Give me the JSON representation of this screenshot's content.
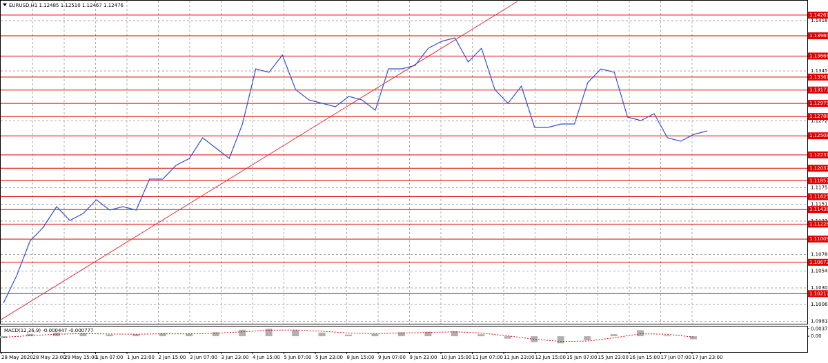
{
  "chart_data": [
    {
      "type": "line",
      "title": "EURUSD,H1 1.12485 1.12510 1.12467 1.12476",
      "color": "#2f4fd0",
      "values": [
        1.1008,
        1.1048,
        1.1098,
        1.1118,
        1.1148,
        1.1128,
        1.1138,
        1.1158,
        1.1143,
        1.1148,
        1.1143,
        1.1188,
        1.1188,
        1.1208,
        1.1218,
        1.1248,
        1.1233,
        1.1218,
        1.1268,
        1.1348,
        1.1343,
        1.1368,
        1.1318,
        1.1303,
        1.1298,
        1.1293,
        1.1308,
        1.1303,
        1.1288,
        1.1348,
        1.1348,
        1.1353,
        1.1378,
        1.1388,
        1.1393,
        1.1358,
        1.1378,
        1.1318,
        1.1298,
        1.1323,
        1.1263,
        1.1263,
        1.1268,
        1.1268,
        1.1328,
        1.1348,
        1.1343,
        1.1278,
        1.1273,
        1.1283,
        1.1248,
        1.1243,
        1.1253,
        1.1258
      ],
      "time_labels": [
        "28 May 2020",
        "28 May 23:00",
        "29 May 15:00",
        "1 Jun 07:00",
        "1 Jun 23:00",
        "2 Jun 15:00",
        "3 Jun 07:00",
        "3 Jun 23:00",
        "4 Jun 15:00",
        "5 Jun 07:00",
        "5 Jun 23:00",
        "8 Jun 15:00",
        "9 Jun 07:00",
        "9 Jun 23:00",
        "10 Jun 15:00",
        "11 Jun 07:00",
        "11 Jun 23:00",
        "12 Jun 15:00",
        "15 Jun 07:00",
        "15 Jun 23:00",
        "16 Jun 15:00",
        "17 Jun 07:00",
        "17 Jun 23:00"
      ],
      "ylim": [
        1.0978,
        1.1445
      ],
      "yticks": [
        {
          "value": 1.1418,
          "label": "1.14180"
        },
        {
          "value": 1.1345,
          "label": "1.13450"
        },
        {
          "value": 1.12725,
          "label": "1.12725"
        },
        {
          "value": 1.11755,
          "label": "1.11755"
        },
        {
          "value": 1.11515,
          "label": "1.11515"
        },
        {
          "value": 1.1127,
          "label": "1.11270"
        },
        {
          "value": 1.10785,
          "label": "1.10785"
        },
        {
          "value": 1.10545,
          "label": "1.10545"
        },
        {
          "value": 1.103,
          "label": "1.10300"
        },
        {
          "value": 1.1006,
          "label": "1.10060"
        },
        {
          "value": 1.09815,
          "label": "1.09815"
        }
      ],
      "levels": [
        {
          "value": 1.14261,
          "label": "1.14261"
        },
        {
          "value": 1.1396,
          "label": "1.13960"
        },
        {
          "value": 1.13666,
          "label": "1.13666"
        },
        {
          "value": 1.13361,
          "label": "1.13361"
        },
        {
          "value": 1.13173,
          "label": "1.13173"
        },
        {
          "value": 1.12979,
          "label": "1.12979"
        },
        {
          "value": 1.12788,
          "label": "1.12788"
        },
        {
          "value": 1.12508,
          "label": "1.12508"
        },
        {
          "value": 1.12231,
          "label": "1.12231"
        },
        {
          "value": 1.12037,
          "label": "1.12037"
        },
        {
          "value": 1.11857,
          "label": "1.11857"
        },
        {
          "value": 1.11625,
          "label": "1.11625"
        },
        {
          "value": 1.11438,
          "label": "1.11438"
        },
        {
          "value": 1.11226,
          "label": "1.11226"
        },
        {
          "value": 1.11009,
          "label": "1.11009"
        },
        {
          "value": 1.10672,
          "label": "1.10672"
        },
        {
          "value": 1.10217,
          "label": "1.10217"
        }
      ],
      "level_color": "#e00000",
      "trendline": {
        "from": 1.0983,
        "to": 1.1446,
        "color": "#e03030"
      },
      "grid": true
    },
    {
      "type": "bar",
      "title": "MACD(12,26,9) -0.000447 -0.000777",
      "color": "#b0b0b0",
      "values": [
        -0.001,
        0.0012,
        0.0018,
        0.0015,
        0.0008,
        0.001,
        0.0015,
        0.0012,
        0.002,
        0.0032,
        0.0037,
        0.003,
        0.0018,
        0.0008,
        0.0012,
        0.002,
        0.0022,
        0.0025,
        0.001,
        -0.0012,
        -0.003,
        -0.0035,
        -0.002,
        0.001,
        0.003,
        0.0005,
        -0.0015
      ],
      "signal": [
        -0.0005,
        0.0003,
        0.001,
        0.0013,
        0.0011,
        0.001,
        0.0012,
        0.0012,
        0.0015,
        0.0022,
        0.003,
        0.0031,
        0.0025,
        0.0016,
        0.0013,
        0.0016,
        0.0019,
        0.0022,
        0.0016,
        0.0002,
        -0.0015,
        -0.0026,
        -0.0024,
        -0.0008,
        0.0012,
        0.001,
        -0.0004
      ],
      "signal_color": "#e00000",
      "ylim": [
        -0.0075,
        0.0045
      ],
      "yticks": [
        0.003723,
        {
          "value": 0,
          "label": "0.00"
        }
      ]
    }
  ]
}
